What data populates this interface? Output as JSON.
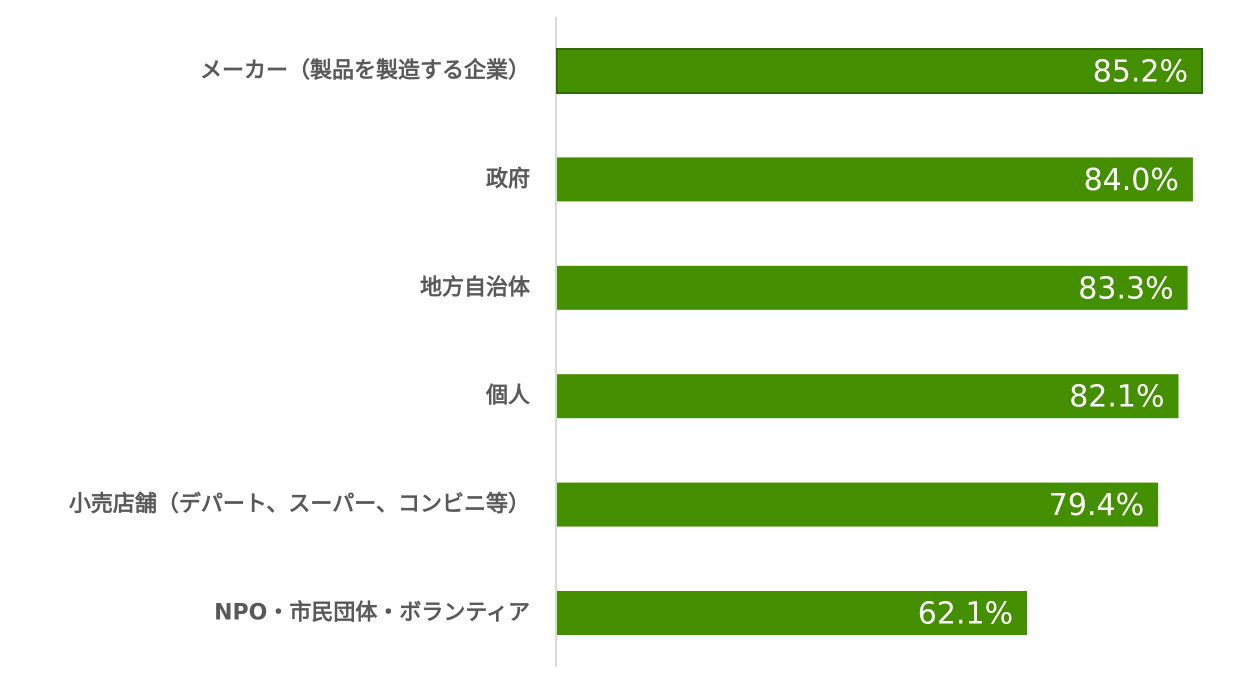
{
  "chart_data": {
    "type": "bar",
    "orientation": "horizontal",
    "categories": [
      "メーカー（製品を製造する企業）",
      "政府",
      "地方自治体",
      "個人",
      "小売店舗（デパート、スーパー、コンビニ等）",
      "NPO・市民団体・ボランティア"
    ],
    "values": [
      85.2,
      84.0,
      83.3,
      82.1,
      79.4,
      62.1
    ],
    "value_labels": [
      "85.2%",
      "84.0%",
      "83.3%",
      "82.1%",
      "79.4%",
      "62.1%"
    ],
    "unit": "%",
    "xlim": [
      0,
      100
    ],
    "grid": false,
    "legend": "none",
    "colors": {
      "bar": "#438f00",
      "bar_highlight_stroke": "#2e6b00",
      "axis": "#d9d9d9",
      "category_text": "#595959",
      "value_text": "#ffffff"
    }
  }
}
